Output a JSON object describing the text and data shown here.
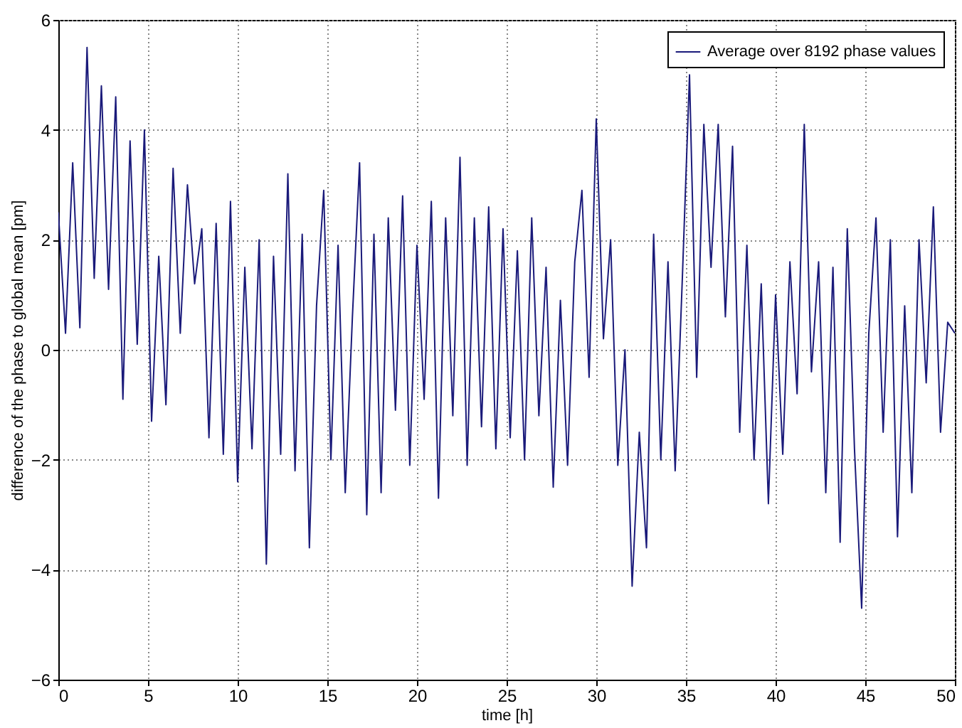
{
  "chart_data": {
    "type": "line",
    "xlabel": "time [h]",
    "ylabel": "difference of the phase to global mean [pm]",
    "x": [
      0,
      0.4,
      0.8,
      1.2,
      1.6,
      2,
      2.4,
      2.8,
      3.2,
      3.6,
      4,
      4.4,
      4.8,
      5.2,
      5.6,
      6,
      6.4,
      6.8,
      7.2,
      7.6,
      8,
      8.4,
      8.8,
      9.2,
      9.6,
      10,
      10.4,
      10.8,
      11.2,
      11.6,
      12,
      12.4,
      12.8,
      13.2,
      13.6,
      14,
      14.4,
      14.8,
      15.2,
      15.6,
      16,
      16.4,
      16.8,
      17.2,
      17.6,
      18,
      18.4,
      18.8,
      19.2,
      19.6,
      20,
      20.4,
      20.8,
      21.2,
      21.6,
      22,
      22.4,
      22.8,
      23.2,
      23.6,
      24,
      24.4,
      24.8,
      25.2,
      25.6,
      26,
      26.4,
      26.8,
      27.2,
      27.6,
      28,
      28.4,
      28.8,
      29.2,
      29.6,
      30,
      30.4,
      30.8,
      31.2,
      31.6,
      32,
      32.4,
      32.8,
      33.2,
      33.6,
      34,
      34.4,
      34.8,
      35.2,
      35.6,
      36,
      36.4,
      36.8,
      37.2,
      37.6,
      38,
      38.4,
      38.8,
      39.2,
      39.6,
      40,
      40.4,
      40.8,
      41.2,
      41.6,
      42,
      42.4,
      42.8,
      43.2,
      43.6,
      44,
      44.4,
      44.8,
      45.2,
      45.6,
      46,
      46.4,
      46.8,
      47.2,
      47.6,
      48,
      48.4,
      48.8,
      49.2,
      49.6,
      50
    ],
    "series": [
      {
        "name": "Average over 8192 phase values",
        "color": "#1a1a7a",
        "values": [
          2.5,
          0.3,
          3.4,
          0.4,
          5.5,
          1.3,
          4.8,
          1.1,
          4.6,
          -0.9,
          3.8,
          0.1,
          4.0,
          -1.3,
          1.7,
          -1.0,
          3.3,
          0.3,
          3.0,
          1.2,
          2.2,
          -1.6,
          2.3,
          -1.9,
          2.7,
          -2.4,
          1.5,
          -1.8,
          2.0,
          -3.9,
          1.7,
          -1.9,
          3.2,
          -2.2,
          2.1,
          -3.6,
          0.8,
          2.9,
          -2.0,
          1.9,
          -2.6,
          0.6,
          3.4,
          -3.0,
          2.1,
          -2.6,
          2.4,
          -1.1,
          2.8,
          -2.1,
          1.9,
          -0.9,
          2.7,
          -2.7,
          2.4,
          -1.2,
          3.5,
          -2.1,
          2.4,
          -1.4,
          2.6,
          -1.8,
          2.2,
          -1.6,
          1.8,
          -2.0,
          2.4,
          -1.2,
          1.5,
          -2.5,
          0.9,
          -2.1,
          1.6,
          2.9,
          -0.5,
          4.2,
          0.2,
          2.0,
          -2.1,
          0.0,
          -4.3,
          -1.5,
          -3.6,
          2.1,
          -2.0,
          1.6,
          -2.2,
          1.3,
          5.0,
          -0.5,
          4.1,
          1.5,
          4.1,
          0.6,
          3.7,
          -1.5,
          1.9,
          -2.0,
          1.2,
          -2.8,
          1.0,
          -1.9,
          1.6,
          -0.8,
          4.1,
          -0.4,
          1.6,
          -2.6,
          1.5,
          -3.5,
          2.2,
          -1.8,
          -4.7,
          0.3,
          2.4,
          -1.5,
          2.0,
          -3.4,
          0.8,
          -2.6,
          2.0,
          -0.6,
          2.6,
          -1.5,
          0.5,
          0.3
        ]
      }
    ],
    "xlim": [
      0,
      50
    ],
    "xticks": [
      0,
      5,
      10,
      15,
      20,
      25,
      30,
      35,
      40,
      45,
      50
    ],
    "ylim": [
      -6,
      6
    ],
    "yticks": [
      -6,
      -4,
      -2,
      0,
      2,
      4,
      6
    ],
    "grid": true,
    "legend": "top right",
    "line_style": "solid"
  }
}
